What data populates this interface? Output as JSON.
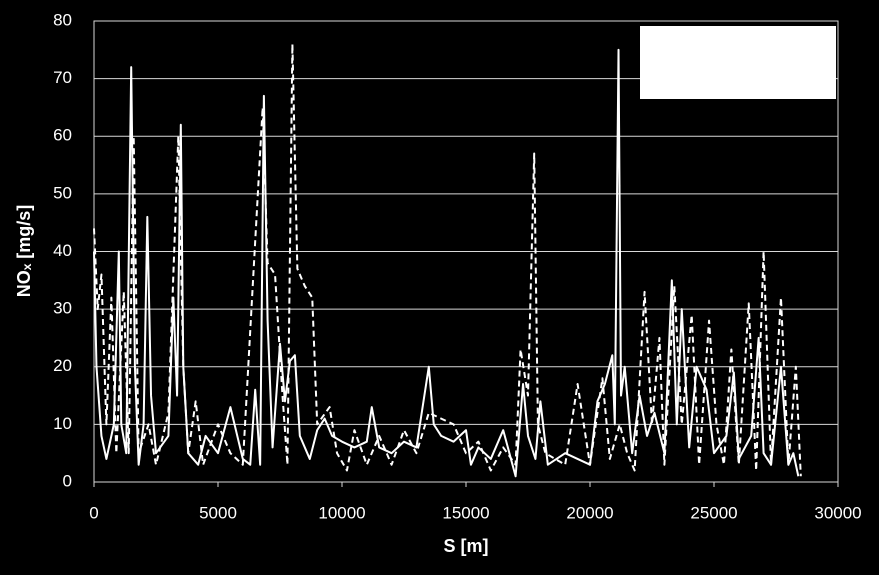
{
  "chart_data": {
    "type": "line",
    "xlabel": "S [m]",
    "ylabel": "NOₓ [mg/s]",
    "xlim": [
      0,
      30000
    ],
    "xticks": [
      0,
      5000,
      10000,
      15000,
      20000,
      25000,
      30000
    ],
    "ylim": [
      0,
      80
    ],
    "yticks": [
      0,
      10,
      20,
      30,
      40,
      50,
      60,
      70,
      80
    ],
    "grid": true,
    "series": [
      {
        "color": "#ffffff",
        "dash": "solid",
        "x": [
          0,
          100,
          300,
          500,
          800,
          1000,
          1100,
          1300,
          1500,
          1650,
          1800,
          2000,
          2150,
          2300,
          2500,
          3000,
          3200,
          3350,
          3500,
          3600,
          3800,
          4200,
          4500,
          5000,
          5500,
          6000,
          6300,
          6500,
          6700,
          6850,
          7000,
          7200,
          7500,
          7700,
          7900,
          8100,
          8300,
          8700,
          9000,
          9300,
          9600,
          10000,
          10500,
          11000,
          11200,
          11500,
          12000,
          12500,
          13000,
          13500,
          13700,
          14000,
          14500,
          15000,
          15200,
          15500,
          16000,
          16500,
          17000,
          17300,
          17500,
          17800,
          18000,
          18300,
          19000,
          19500,
          20000,
          20300,
          20600,
          20900,
          21000,
          21150,
          21250,
          21400,
          21700,
          22000,
          22300,
          22600,
          23000,
          23300,
          23500,
          23700,
          24000,
          24300,
          24700,
          25000,
          25500,
          25800,
          26000,
          26500,
          26800,
          27000,
          27300,
          27700,
          28000,
          28200,
          28400
        ],
        "values": [
          40,
          20,
          8,
          4,
          10,
          40,
          10,
          5,
          72,
          20,
          3,
          10,
          46,
          15,
          5,
          8,
          32,
          15,
          62,
          20,
          5,
          3,
          8,
          5,
          13,
          4,
          3,
          16,
          3,
          67,
          28,
          6,
          24,
          14,
          21,
          22,
          8,
          4,
          9,
          11,
          8,
          7,
          6,
          7,
          13,
          6,
          5,
          7,
          6,
          20,
          10,
          8,
          7,
          9,
          3,
          6,
          4,
          9,
          1,
          17,
          8,
          4,
          14,
          3,
          5,
          4,
          3,
          14,
          17,
          22,
          10,
          75,
          15,
          20,
          5,
          15,
          8,
          12,
          5,
          35,
          10,
          30,
          6,
          20,
          16,
          5,
          8,
          19,
          4,
          8,
          25,
          5,
          3,
          20,
          3,
          5,
          1
        ]
      },
      {
        "color": "#ffffff",
        "dash": "dashed",
        "x": [
          0,
          150,
          300,
          500,
          700,
          900,
          1200,
          1400,
          1600,
          1800,
          2200,
          2500,
          3000,
          3400,
          3600,
          3800,
          4100,
          4400,
          5000,
          5500,
          6000,
          6800,
          7000,
          7300,
          7600,
          7800,
          8000,
          8200,
          8500,
          8800,
          9000,
          9500,
          9800,
          10200,
          10500,
          11000,
          11500,
          12000,
          12500,
          13000,
          13500,
          14000,
          14500,
          15000,
          15500,
          16000,
          16500,
          17000,
          17200,
          17500,
          17750,
          17900,
          18200,
          19000,
          19500,
          20000,
          20500,
          20800,
          21200,
          21500,
          21800,
          22200,
          22500,
          22800,
          23000,
          23400,
          23700,
          24100,
          24400,
          24800,
          25100,
          25400,
          25700,
          26000,
          26400,
          26700,
          27000,
          27300,
          27700,
          28000,
          28300,
          28500
        ],
        "values": [
          44,
          30,
          36,
          10,
          32,
          5,
          33,
          5,
          60,
          5,
          10,
          3,
          12,
          60,
          20,
          5,
          14,
          3,
          10,
          5,
          3,
          65,
          38,
          36,
          15,
          3,
          76,
          37,
          34,
          32,
          10,
          13,
          5,
          2,
          9,
          3,
          8,
          3,
          9,
          5,
          12,
          11,
          10,
          5,
          7,
          2,
          6,
          3,
          23,
          15,
          57,
          10,
          5,
          3,
          17,
          3,
          18,
          4,
          10,
          5,
          2,
          33,
          10,
          25,
          3,
          34,
          10,
          29,
          3,
          28,
          10,
          3,
          23,
          3,
          31,
          2,
          40,
          3,
          32,
          3,
          20,
          1
        ]
      }
    ]
  }
}
